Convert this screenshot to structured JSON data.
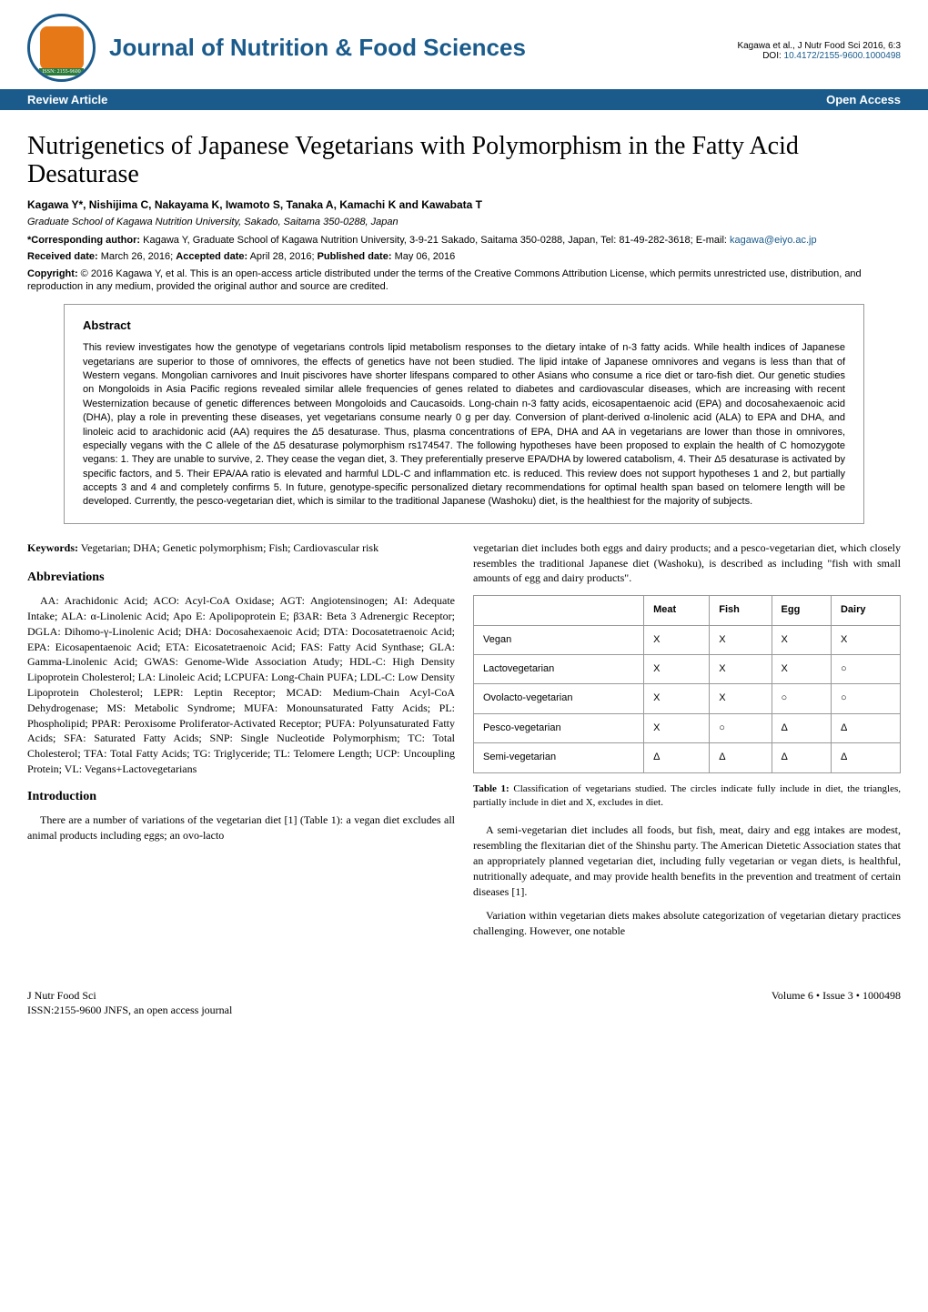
{
  "header": {
    "journal_title": "Journal of Nutrition & Food Sciences",
    "citation": "Kagawa et al., J Nutr Food Sci 2016, 6:3",
    "doi_label": "DOI:",
    "doi": "10.4172/2155-9600.1000498",
    "logo_text": "",
    "issn_text": "ISSN: 2155-9600"
  },
  "bluebar": {
    "left": "Review Article",
    "right": "Open Access"
  },
  "title": "Nutrigenetics of Japanese Vegetarians with Polymorphism in the Fatty Acid Desaturase",
  "authors": "Kagawa Y*, Nishijima C, Nakayama K, Iwamoto S, Tanaka A, Kamachi K and Kawabata T",
  "affiliation": "Graduate School of Kagawa Nutrition University, Sakado, Saitama 350-0288, Japan",
  "corresponding": {
    "label": "*Corresponding author:",
    "text": "Kagawa Y, Graduate School of Kagawa Nutrition University, 3-9-21 Sakado, Saitama 350-0288, Japan, Tel: 81-49-282-3618; E-mail:",
    "email": "kagawa@eiyo.ac.jp"
  },
  "dates": {
    "received_label": "Received date:",
    "received": "March 26, 2016;",
    "accepted_label": "Accepted date:",
    "accepted": "April 28, 2016;",
    "published_label": "Published date:",
    "published": "May 06, 2016"
  },
  "copyright": {
    "label": "Copyright:",
    "text": "© 2016 Kagawa Y, et al. This is an open-access article distributed under the terms of the Creative Commons Attribution License, which permits unrestricted use, distribution, and reproduction in any medium, provided the original author and source are credited."
  },
  "abstract": {
    "heading": "Abstract",
    "text": "This review investigates how the genotype of vegetarians controls lipid metabolism responses to the dietary intake of n-3 fatty acids. While health indices of Japanese vegetarians are superior to those of omnivores, the effects of genetics have not been studied. The lipid intake of Japanese omnivores and vegans is less than that of Western vegans. Mongolian carnivores and Inuit piscivores have shorter lifespans compared to other Asians who consume a rice diet or taro-fish diet. Our genetic studies on Mongoloids in Asia Pacific regions revealed similar allele frequencies of genes related to diabetes and cardiovascular diseases, which are increasing with recent Westernization because of genetic differences between Mongoloids and Caucasoids. Long-chain n-3 fatty acids, eicosapentaenoic acid (EPA) and docosahexaenoic acid (DHA), play a role in preventing these diseases, yet vegetarians consume nearly 0 g per day. Conversion of plant-derived α-linolenic acid (ALA) to EPA and DHA, and linoleic acid to arachidonic acid (AA) requires the Δ5 desaturase. Thus, plasma concentrations of EPA, DHA and AA in vegetarians are lower than those in omnivores, especially vegans with the C allele of the Δ5 desaturase polymorphism rs174547. The following hypotheses have been proposed to explain the health of C homozygote vegans: 1. They are unable to survive, 2. They cease the vegan diet, 3. They preferentially preserve EPA/DHA by lowered catabolism, 4. Their Δ5 desaturase is activated by specific factors, and 5. Their EPA/AA ratio is elevated and harmful LDL-C and inflammation etc. is reduced. This review does not support hypotheses 1 and 2, but partially accepts 3 and 4 and completely confirms 5. In future, genotype-specific personalized dietary recommendations for optimal health span based on telomere length will be developed. Currently, the pesco-vegetarian diet, which is similar to the traditional Japanese (Washoku) diet, is the healthiest for the majority of subjects."
  },
  "keywords": {
    "label": "Keywords:",
    "text": "Vegetarian; DHA; Genetic polymorphism; Fish; Cardiovascular risk"
  },
  "abbreviations": {
    "heading": "Abbreviations",
    "text": "AA: Arachidonic Acid; ACO: Acyl-CoA Oxidase; AGT: Angiotensinogen; AI: Adequate Intake; ALA: α-Linolenic Acid; Apo E: Apolipoprotein E; β3AR: Beta 3 Adrenergic Receptor; DGLA: Dihomo-γ-Linolenic Acid; DHA: Docosahexaenoic Acid; DTA: Docosatetraenoic Acid; EPA: Eicosapentaenoic Acid; ETA: Eicosatetraenoic Acid; FAS: Fatty Acid Synthase; GLA: Gamma-Linolenic Acid; GWAS: Genome-Wide Association Atudy; HDL-C: High Density Lipoprotein Cholesterol; LA: Linoleic Acid; LCPUFA: Long-Chain PUFA; LDL-C: Low Density Lipoprotein Cholesterol; LEPR: Leptin Receptor; MCAD: Medium-Chain Acyl-CoA Dehydrogenase; MS: Metabolic Syndrome; MUFA: Monounsaturated Fatty Acids; PL: Phospholipid; PPAR: Peroxisome Proliferator-Activated Receptor; PUFA: Polyunsaturated Fatty Acids; SFA: Saturated Fatty Acids; SNP: Single Nucleotide Polymorphism; TC: Total Cholesterol; TFA: Total Fatty Acids; TG: Triglyceride; TL: Telomere Length; UCP: Uncoupling Protein; VL: Vegans+Lactovegetarians"
  },
  "introduction": {
    "heading": "Introduction",
    "para1": "There are a number of variations of the vegetarian diet [1] (Table 1): a vegan diet excludes all animal products including eggs; an ovo-lacto",
    "para1_cont": "vegetarian diet includes both eggs and dairy products; and a pesco-vegetarian diet, which closely resembles the traditional Japanese diet (Washoku), is described as including \"fish with small amounts of egg and dairy products\".",
    "para2": "A semi-vegetarian diet includes all foods, but fish, meat, dairy and egg intakes are modest, resembling the flexitarian diet of the Shinshu party. The American Dietetic Association states that an appropriately planned vegetarian diet, including fully vegetarian or vegan diets, is healthful, nutritionally adequate, and may provide health benefits in the prevention and treatment of certain diseases [1].",
    "para3": "Variation within vegetarian diets makes absolute categorization of vegetarian dietary practices challenging. However, one notable"
  },
  "table1": {
    "headers": [
      "",
      "Meat",
      "Fish",
      "Egg",
      "Dairy"
    ],
    "rows": [
      [
        "Vegan",
        "X",
        "X",
        "X",
        "X"
      ],
      [
        "Lactovegetarian",
        "X",
        "X",
        "X",
        "○"
      ],
      [
        "Ovolacto-vegetarian",
        "X",
        "X",
        "○",
        "○"
      ],
      [
        "Pesco-vegetarian",
        "X",
        "○",
        "Δ",
        "Δ"
      ],
      [
        "Semi-vegetarian",
        "Δ",
        "Δ",
        "Δ",
        "Δ"
      ]
    ],
    "caption_label": "Table 1:",
    "caption": "Classification of vegetarians studied. The circles indicate fully include in diet, the triangles, partially include in diet and X, excludes in diet."
  },
  "footer": {
    "journal_short": "J Nutr Food Sci",
    "issn_line": "ISSN:2155-9600 JNFS, an open access journal",
    "volume_line": "Volume 6 • Issue 3 • 1000498"
  },
  "colors": {
    "brand_blue": "#1a5b8c",
    "orange": "#e67817",
    "green": "#2a7a3a",
    "border_grey": "#999999"
  }
}
